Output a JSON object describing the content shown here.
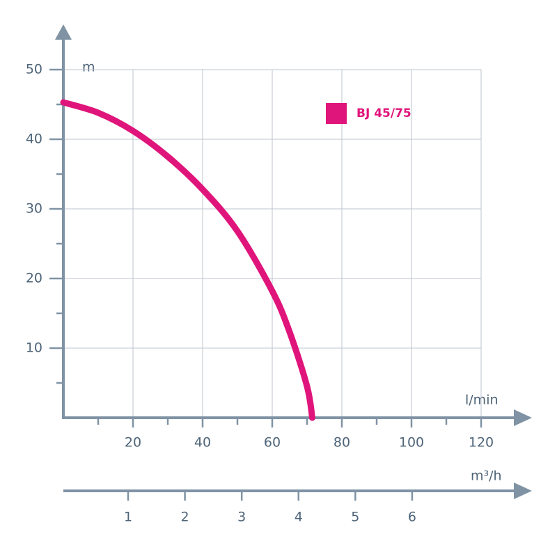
{
  "chart_data": {
    "type": "line",
    "y_label": "m",
    "x_label": "l/min",
    "x2_label": "m³/h",
    "xlim": [
      0,
      133.8
    ],
    "ylim": [
      0,
      56.5
    ],
    "xticks": [
      20,
      40,
      60,
      80,
      100,
      120
    ],
    "xminor_ticks": [
      10,
      30,
      50,
      70,
      90,
      110
    ],
    "yticks": [
      10,
      20,
      30,
      40,
      50
    ],
    "yminor_ticks": [
      5,
      15,
      25,
      35,
      45
    ],
    "x2lim": [
      -0.14,
      8.06
    ],
    "x2ticks": [
      1,
      2,
      3,
      4,
      5,
      6
    ],
    "grid": true,
    "series": [
      {
        "name": "BJ 45/75",
        "color": "#e0157b",
        "x": [
          0,
          10,
          20,
          30,
          40,
          50,
          60,
          65,
          70,
          71.5
        ],
        "values": [
          45.3,
          43.8,
          41.2,
          37.5,
          32.8,
          26.8,
          18.2,
          12.3,
          4.5,
          0
        ]
      }
    ]
  }
}
